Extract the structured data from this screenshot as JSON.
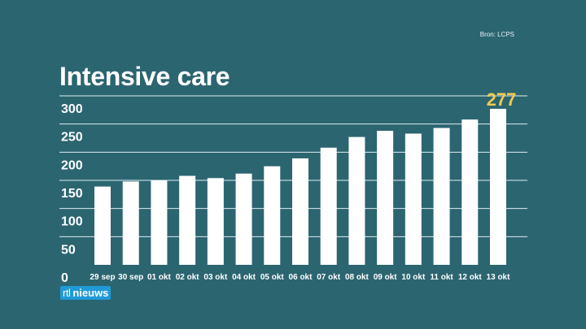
{
  "source": "Bron: LCPS",
  "logo": {
    "part1": "rtl",
    "part2": "nieuws"
  },
  "chart_data": {
    "type": "bar",
    "title": "Intensive care",
    "categories": [
      "29 sep",
      "30 sep",
      "01 okt",
      "02 okt",
      "03 okt",
      "04 okt",
      "05 okt",
      "06 okt",
      "07 okt",
      "08 okt",
      "09 okt",
      "10 okt",
      "11 okt",
      "12 okt",
      "13 okt"
    ],
    "values": [
      139,
      148,
      150,
      158,
      154,
      162,
      175,
      189,
      208,
      227,
      238,
      233,
      243,
      258,
      277
    ],
    "highlight_label": "277",
    "highlight_index": 14,
    "yticks": [
      0,
      50,
      100,
      150,
      200,
      250,
      300
    ],
    "ylim": [
      0,
      300
    ],
    "grid": true,
    "colors": {
      "bar": "#ffffff",
      "gridline": "#dfeef0",
      "highlight": "#f2c94c",
      "background": "#2b6570"
    }
  }
}
